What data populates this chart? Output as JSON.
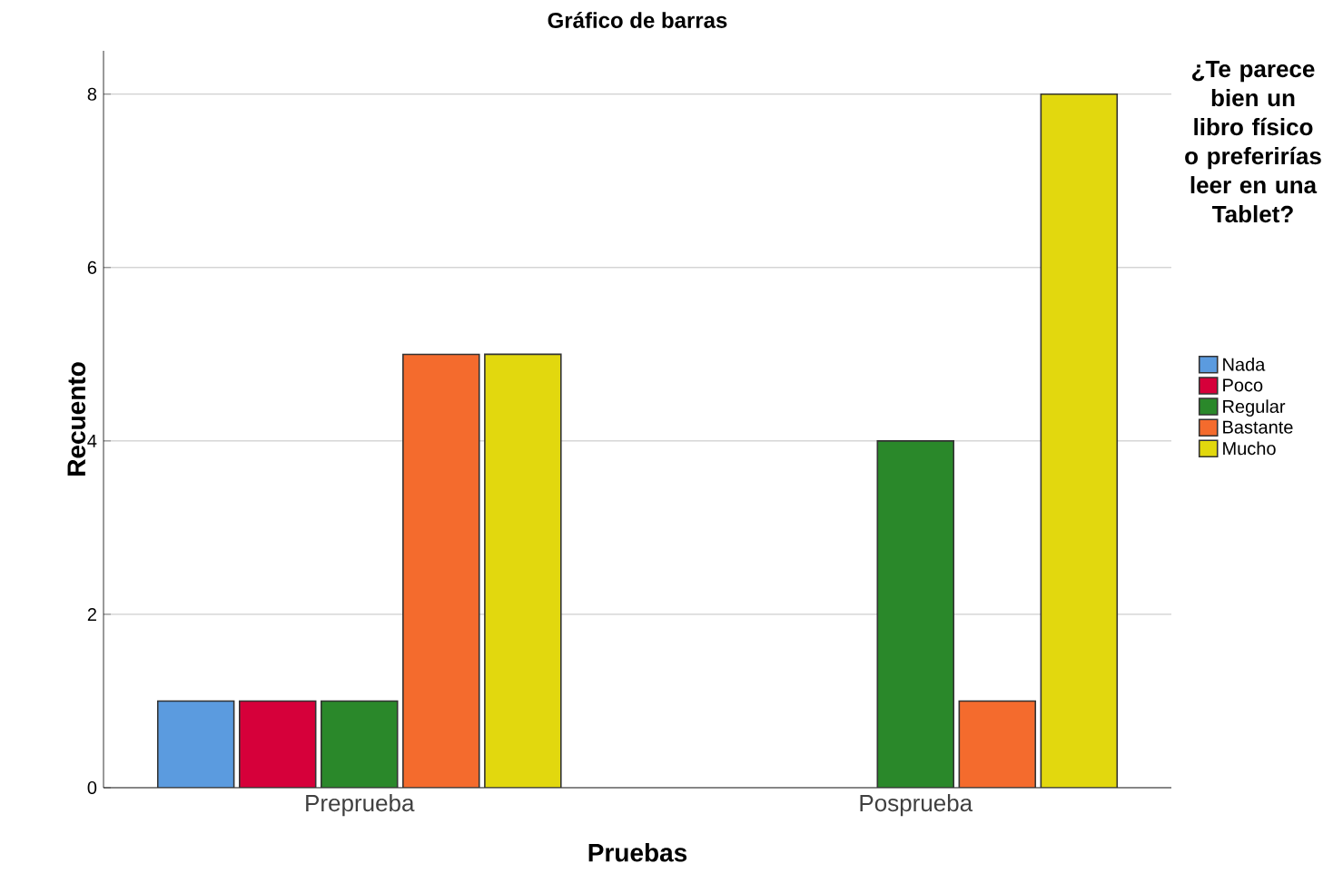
{
  "chart_data": {
    "type": "bar",
    "title": "Gráfico de barras",
    "xlabel": "Pruebas",
    "ylabel": "Recuento",
    "legend_title": "¿Te parece bien un libro físico o preferirías leer en una Tablet?",
    "categories": [
      "Preprueba",
      "Posprueba"
    ],
    "series": [
      {
        "name": "Nada",
        "color": "#5b9bdf",
        "values": [
          1,
          null
        ]
      },
      {
        "name": "Poco",
        "color": "#d6003a",
        "values": [
          1,
          null
        ]
      },
      {
        "name": "Regular",
        "color": "#2a882a",
        "values": [
          1,
          4
        ]
      },
      {
        "name": "Bastante",
        "color": "#f46b2d",
        "values": [
          5,
          1
        ]
      },
      {
        "name": "Mucho",
        "color": "#e2d80e",
        "values": [
          5,
          8
        ]
      }
    ],
    "ylim": [
      0,
      8.5
    ],
    "yticks": [
      0,
      2,
      4,
      6,
      8
    ],
    "grid": "y",
    "legend": "right"
  }
}
